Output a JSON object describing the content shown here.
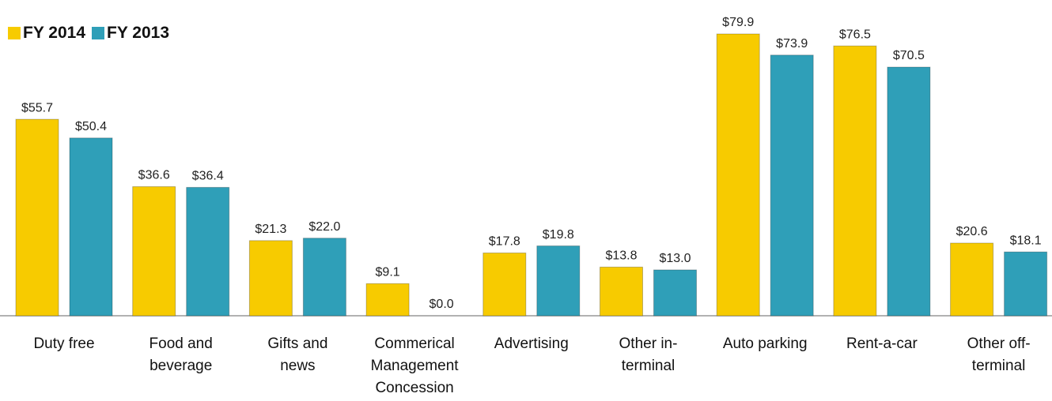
{
  "chart_data": {
    "type": "bar",
    "categories": [
      "Duty free",
      "Food and beverage",
      "Gifts and news",
      "Commerical Management Concession",
      "Advertising",
      "Other in-terminal",
      "Auto parking",
      "Rent-a-car",
      "Other off-terminal"
    ],
    "series": [
      {
        "name": "FY 2014",
        "color": "#f7cb00",
        "values": [
          55.7,
          36.6,
          21.3,
          9.1,
          17.8,
          13.8,
          79.9,
          76.5,
          20.6
        ],
        "value_labels": [
          "$55.7",
          "$36.6",
          "$21.3",
          "$9.1",
          "$17.8",
          "$13.8",
          "$79.9",
          "$76.5",
          "$20.6"
        ]
      },
      {
        "name": "FY 2013",
        "color": "#2f9fb8",
        "values": [
          50.4,
          36.4,
          22.0,
          0.0,
          19.8,
          13.0,
          73.9,
          70.5,
          18.1
        ],
        "value_labels": [
          "$50.4",
          "$36.4",
          "$22.0",
          "$0.0",
          "$19.8",
          "$13.0",
          "$73.9",
          "$70.5",
          "$18.1"
        ]
      }
    ],
    "legend": "top-left"
  }
}
